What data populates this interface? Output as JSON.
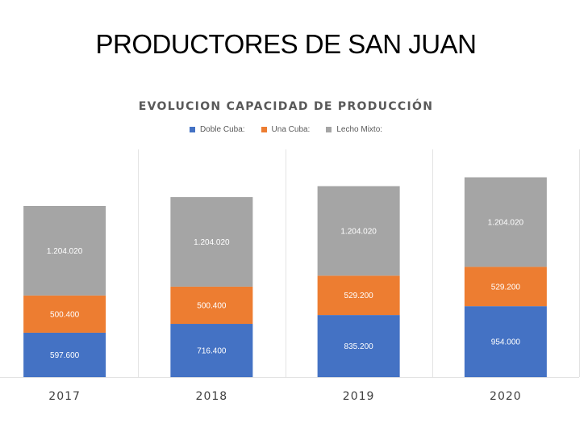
{
  "page": {
    "title": "PRODUCTORES DE SAN JUAN"
  },
  "chart_data": {
    "type": "bar",
    "stacked": true,
    "title": "EVOLUCION CAPACIDAD DE PRODUCCIÓN",
    "xlabel": "",
    "ylabel": "",
    "categories": [
      "2017",
      "2018",
      "2019",
      "2020"
    ],
    "series": [
      {
        "name": "Doble Cuba:",
        "color": "#4472C4",
        "values": [
          597600,
          716400,
          835200,
          954000
        ],
        "labels": [
          "597.600",
          "716.400",
          "835.200",
          "954.000"
        ]
      },
      {
        "name": "Una Cuba:",
        "color": "#ED7D31",
        "values": [
          500400,
          500400,
          529200,
          529200
        ],
        "labels": [
          "500.400",
          "500.400",
          "529.200",
          "529.200"
        ]
      },
      {
        "name": "Lecho Mixto:",
        "color": "#A5A5A5",
        "values": [
          1204020,
          1204020,
          1204020,
          1204020
        ],
        "labels": [
          "1.204.020",
          "1.204.020",
          "1.204.020",
          "1.204.020"
        ]
      }
    ],
    "legend_position": "top",
    "grid": "vertical category separators",
    "y_axis_visible": false
  }
}
